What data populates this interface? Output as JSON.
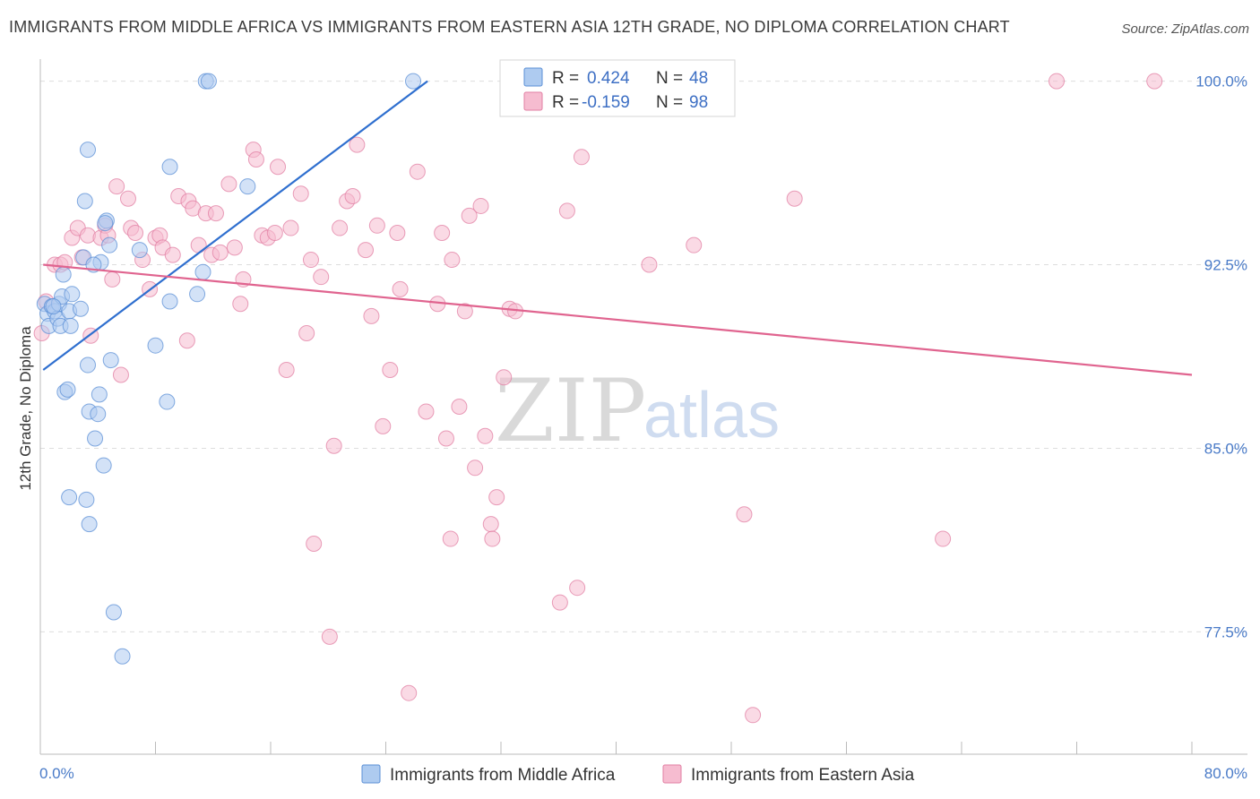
{
  "title": "IMMIGRANTS FROM MIDDLE AFRICA VS IMMIGRANTS FROM EASTERN ASIA 12TH GRADE, NO DIPLOMA CORRELATION CHART",
  "source": "Source: ZipAtlas.com",
  "watermark": {
    "zip": "ZIP",
    "atlas": "atlas"
  },
  "colors": {
    "blue_fill": "#aecbf0",
    "blue_stroke": "#5b8fd6",
    "blue_line": "#2f6fcf",
    "pink_fill": "#f6bcd0",
    "pink_stroke": "#e27fa3",
    "pink_line": "#e0648f",
    "grid": "#dddddd",
    "axis_text": "#4a7bc8"
  },
  "legend_box": {
    "rows": [
      {
        "r_label": "R = ",
        "r_value": "0.424",
        "n_label": "N = ",
        "n_value": "48"
      },
      {
        "r_label": "R = ",
        "r_value": "-0.159",
        "n_label": "N = ",
        "n_value": "98"
      }
    ]
  },
  "bottom_legend": [
    "Immigrants from Middle Africa",
    "Immigrants from Eastern Asia"
  ],
  "chart_data": {
    "type": "scatter",
    "xlabel": "",
    "ylabel": "12th Grade, No Diploma",
    "xlim": [
      0,
      80
    ],
    "ylim": [
      72.5,
      100.9
    ],
    "x_tick_labels": [
      "0.0%",
      "80.0%"
    ],
    "y_ticks": [
      77.5,
      85.0,
      92.5,
      100.0
    ],
    "y_tick_labels": [
      "77.5%",
      "85.0%",
      "92.5%",
      "100.0%"
    ],
    "grid": true,
    "legend": "top-center",
    "series": [
      {
        "name": "Immigrants from Middle Africa",
        "r": 0.424,
        "n": 48,
        "trend": [
          [
            0.2,
            88.2
          ],
          [
            26.9,
            100.0
          ]
        ],
        "points": [
          [
            0.3,
            90.9
          ],
          [
            0.5,
            90.5
          ],
          [
            0.6,
            90.0
          ],
          [
            0.8,
            90.8
          ],
          [
            1.0,
            90.6
          ],
          [
            1.2,
            90.3
          ],
          [
            1.3,
            90.9
          ],
          [
            1.4,
            90.0
          ],
          [
            1.5,
            91.2
          ],
          [
            1.6,
            92.1
          ],
          [
            2.0,
            90.6
          ],
          [
            2.2,
            91.3
          ],
          [
            2.8,
            90.7
          ],
          [
            3.0,
            92.8
          ],
          [
            3.3,
            88.4
          ],
          [
            1.7,
            87.3
          ],
          [
            1.9,
            87.4
          ],
          [
            3.4,
            86.5
          ],
          [
            4.0,
            86.4
          ],
          [
            4.1,
            87.2
          ],
          [
            3.2,
            82.9
          ],
          [
            2.0,
            83.0
          ],
          [
            3.4,
            81.9
          ],
          [
            3.8,
            85.4
          ],
          [
            4.2,
            92.6
          ],
          [
            3.7,
            92.5
          ],
          [
            3.1,
            95.1
          ],
          [
            3.3,
            97.2
          ],
          [
            4.6,
            94.3
          ],
          [
            4.5,
            94.2
          ],
          [
            4.8,
            93.3
          ],
          [
            4.9,
            88.6
          ],
          [
            5.1,
            78.3
          ],
          [
            5.7,
            76.5
          ],
          [
            4.4,
            84.3
          ],
          [
            6.9,
            93.1
          ],
          [
            8.0,
            89.2
          ],
          [
            8.8,
            86.9
          ],
          [
            9.0,
            96.5
          ],
          [
            9.0,
            91.0
          ],
          [
            10.9,
            91.3
          ],
          [
            11.3,
            92.2
          ],
          [
            11.5,
            100.0
          ],
          [
            11.7,
            100.0
          ],
          [
            14.4,
            95.7
          ],
          [
            25.9,
            100.0
          ],
          [
            2.1,
            90.0
          ],
          [
            0.9,
            90.8
          ]
        ]
      },
      {
        "name": "Immigrants from Eastern Asia",
        "r": -0.159,
        "n": 98,
        "trend": [
          [
            0.2,
            92.5
          ],
          [
            80.0,
            88.0
          ]
        ],
        "points": [
          [
            0.1,
            89.7
          ],
          [
            0.4,
            91.0
          ],
          [
            1.0,
            92.5
          ],
          [
            1.4,
            92.5
          ],
          [
            1.7,
            92.6
          ],
          [
            2.2,
            93.6
          ],
          [
            2.6,
            94.0
          ],
          [
            2.9,
            92.8
          ],
          [
            3.3,
            93.7
          ],
          [
            3.5,
            89.6
          ],
          [
            4.2,
            93.6
          ],
          [
            4.5,
            94.1
          ],
          [
            4.7,
            93.7
          ],
          [
            5.0,
            91.9
          ],
          [
            5.3,
            95.7
          ],
          [
            5.6,
            88.0
          ],
          [
            6.1,
            95.2
          ],
          [
            6.3,
            94.0
          ],
          [
            6.6,
            93.8
          ],
          [
            7.1,
            92.7
          ],
          [
            7.6,
            91.5
          ],
          [
            8.0,
            93.6
          ],
          [
            8.3,
            93.7
          ],
          [
            8.5,
            93.2
          ],
          [
            9.2,
            92.9
          ],
          [
            9.6,
            95.3
          ],
          [
            10.2,
            89.4
          ],
          [
            10.3,
            95.1
          ],
          [
            10.6,
            94.8
          ],
          [
            11.0,
            93.3
          ],
          [
            11.5,
            94.6
          ],
          [
            11.9,
            92.9
          ],
          [
            12.2,
            94.6
          ],
          [
            12.5,
            93.0
          ],
          [
            13.1,
            95.8
          ],
          [
            13.5,
            93.2
          ],
          [
            13.9,
            90.9
          ],
          [
            14.1,
            91.9
          ],
          [
            14.8,
            97.2
          ],
          [
            15.0,
            96.8
          ],
          [
            15.4,
            93.7
          ],
          [
            15.8,
            93.6
          ],
          [
            16.3,
            93.8
          ],
          [
            16.5,
            96.5
          ],
          [
            17.1,
            88.2
          ],
          [
            17.4,
            94.0
          ],
          [
            18.1,
            95.4
          ],
          [
            18.5,
            89.7
          ],
          [
            18.8,
            92.7
          ],
          [
            19.0,
            81.1
          ],
          [
            19.5,
            92.0
          ],
          [
            20.1,
            77.3
          ],
          [
            20.4,
            85.1
          ],
          [
            20.8,
            94.0
          ],
          [
            21.3,
            95.1
          ],
          [
            21.7,
            95.3
          ],
          [
            22.0,
            97.4
          ],
          [
            22.6,
            93.1
          ],
          [
            23.0,
            90.4
          ],
          [
            23.4,
            94.1
          ],
          [
            23.8,
            85.9
          ],
          [
            24.3,
            88.2
          ],
          [
            24.8,
            93.8
          ],
          [
            25.0,
            91.5
          ],
          [
            25.6,
            75.0
          ],
          [
            26.2,
            96.3
          ],
          [
            26.8,
            86.5
          ],
          [
            27.6,
            90.9
          ],
          [
            27.9,
            93.8
          ],
          [
            28.2,
            85.4
          ],
          [
            28.5,
            81.3
          ],
          [
            28.6,
            92.7
          ],
          [
            29.1,
            86.7
          ],
          [
            29.5,
            90.6
          ],
          [
            29.8,
            94.5
          ],
          [
            30.6,
            94.9
          ],
          [
            30.9,
            85.5
          ],
          [
            31.3,
            81.9
          ],
          [
            31.4,
            81.3
          ],
          [
            31.7,
            83.0
          ],
          [
            32.2,
            87.9
          ],
          [
            32.6,
            90.7
          ],
          [
            33.0,
            90.6
          ],
          [
            36.1,
            78.7
          ],
          [
            36.6,
            94.7
          ],
          [
            37.3,
            79.3
          ],
          [
            37.6,
            96.9
          ],
          [
            38.0,
            100.0
          ],
          [
            42.3,
            92.5
          ],
          [
            45.4,
            93.3
          ],
          [
            48.9,
            82.3
          ],
          [
            49.5,
            74.1
          ],
          [
            52.4,
            95.2
          ],
          [
            62.7,
            81.3
          ],
          [
            70.6,
            100.0
          ],
          [
            77.4,
            100.0
          ],
          [
            43.0,
            100.0
          ],
          [
            30.2,
            84.2
          ]
        ]
      }
    ]
  }
}
